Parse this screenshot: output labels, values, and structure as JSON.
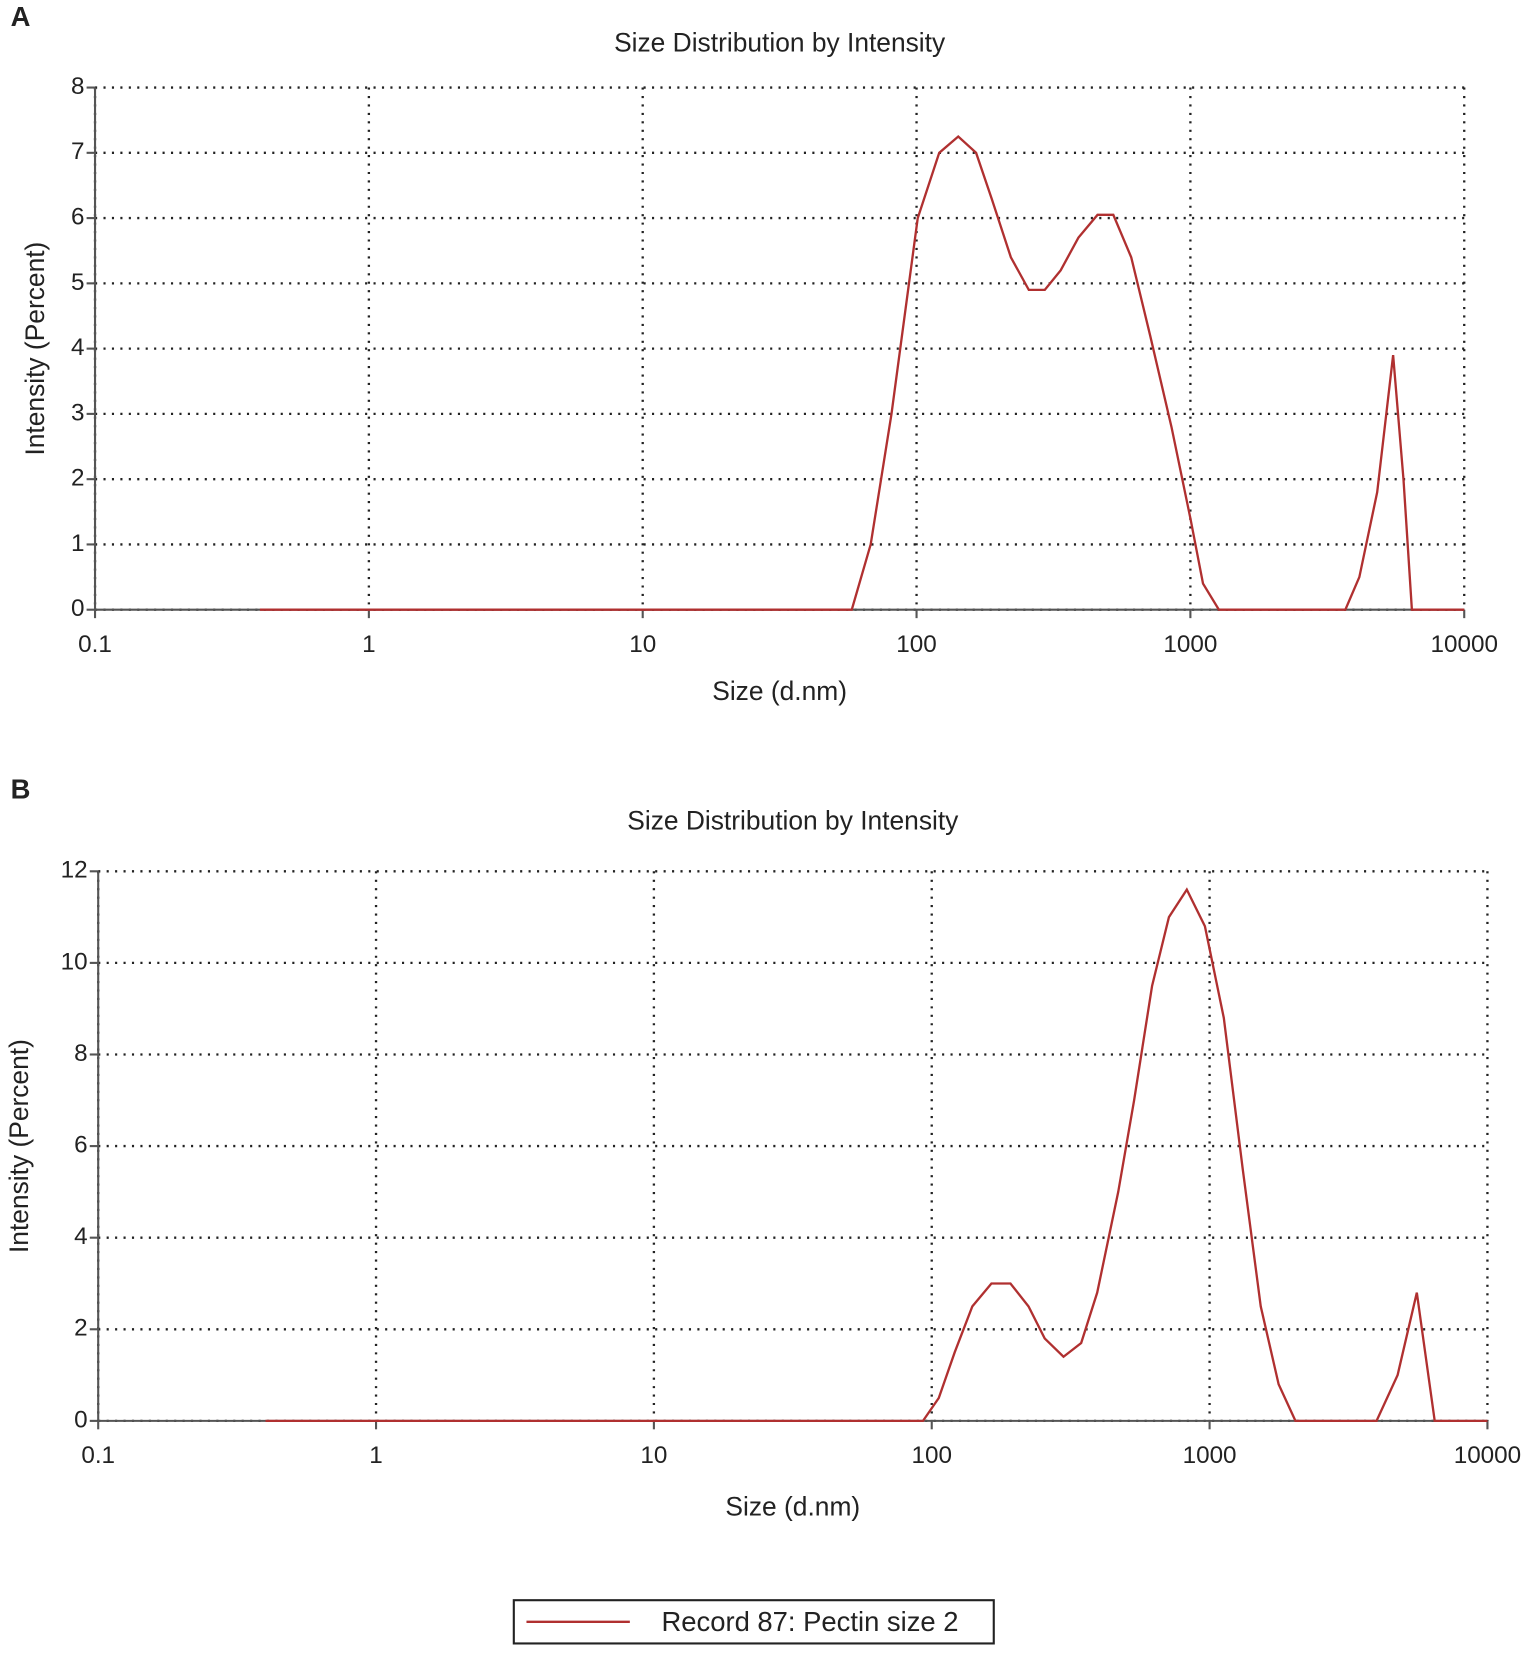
{
  "chart_data": [
    {
      "type": "line",
      "label": "A",
      "title": "Size Distribution by Intensity",
      "x_label": "Size (d.nm)",
      "y_label": "Intensity (Percent)",
      "x": [
        0.4,
        58,
        68,
        81,
        101,
        121,
        142,
        165,
        188,
        221,
        257,
        294,
        336,
        390,
        458,
        523,
        608,
        713,
        853,
        1000,
        1112,
        1271,
        3680,
        4140,
        4810,
        5500,
        6000,
        6440,
        10000
      ],
      "values": [
        0,
        0,
        1,
        3,
        6,
        7,
        7.25,
        7,
        6.3,
        5.4,
        4.9,
        4.9,
        5.2,
        5.7,
        6.05,
        6.05,
        5.4,
        4.2,
        2.8,
        1.4,
        0.4,
        0,
        0,
        0.5,
        1.8,
        3.9,
        2,
        0,
        0
      ],
      "color": "#b03030",
      "xscale": "log",
      "xlim": [
        0.1,
        10000
      ],
      "xticks": [
        0.1,
        1,
        10,
        100,
        1000,
        10000
      ],
      "ylim": [
        0,
        8
      ],
      "yticks": [
        0,
        1,
        2,
        3,
        4,
        5,
        6,
        7,
        8
      ],
      "grid": true
    },
    {
      "type": "line",
      "label": "B",
      "title": "Size Distribution by Intensity",
      "x_label": "Size (d.nm)",
      "y_label": "Intensity (Percent)",
      "x": [
        0.4,
        93,
        106,
        121,
        140,
        164,
        192,
        223,
        255,
        298,
        345,
        394,
        469,
        535,
        621,
        714,
        828,
        962,
        1125,
        1316,
        1528,
        1772,
        2037,
        3990,
        4750,
        5570,
        6460,
        10000
      ],
      "series": [
        {
          "name": "Record 87: Pectin size 2",
          "color": "#b03030",
          "values": [
            0,
            0,
            0.5,
            1.5,
            2.5,
            3,
            3,
            2.5,
            1.8,
            1.4,
            1.7,
            2.8,
            5,
            7,
            9.5,
            11,
            11.6,
            10.8,
            8.8,
            5.5,
            2.5,
            0.8,
            0,
            0,
            1,
            2.8,
            0,
            0
          ]
        }
      ],
      "xscale": "log",
      "xlim": [
        0.1,
        10000
      ],
      "xticks": [
        0.1,
        1,
        10,
        100,
        1000,
        10000
      ],
      "ylim": [
        0,
        12
      ],
      "yticks": [
        0,
        2,
        4,
        6,
        8,
        10,
        12
      ],
      "grid": true,
      "legend": "bottom"
    }
  ]
}
